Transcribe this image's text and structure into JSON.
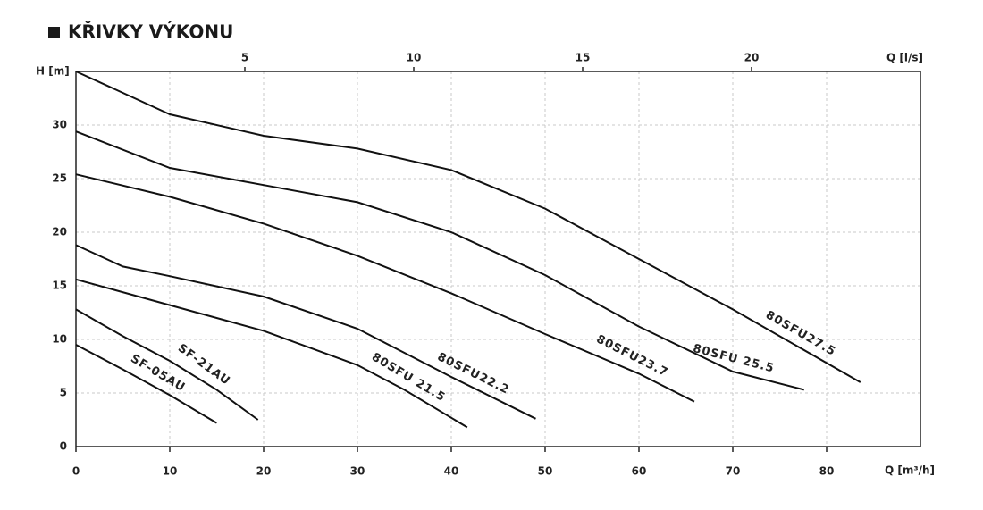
{
  "chart_data": {
    "type": "line",
    "title": "KŘIVKY VÝKONU",
    "y_label": "H [m]",
    "x_label": "Q [m³/h]",
    "x2_label": "Q [l/s]",
    "xlim": [
      0,
      90
    ],
    "xticks": [
      0,
      10,
      20,
      30,
      40,
      50,
      60,
      70,
      80
    ],
    "x2lim": [
      0,
      25
    ],
    "x2ticks": [
      5,
      10,
      15,
      20
    ],
    "ylim": [
      0,
      35
    ],
    "yticks": [
      0,
      5,
      10,
      15,
      20,
      25,
      30
    ],
    "grid": true,
    "series": [
      {
        "name": "SF-05AU",
        "color": "#111111",
        "x": [
          0,
          5,
          10,
          15
        ],
        "values": [
          9.5,
          7.2,
          4.8,
          2.2
        ]
      },
      {
        "name": "SF-21AU",
        "color": "#111111",
        "x": [
          0,
          5,
          10,
          15,
          19.4
        ],
        "values": [
          12.8,
          10.3,
          8,
          5.3,
          2.5
        ]
      },
      {
        "name": "80SFU 21.5",
        "color": "#111111",
        "x": [
          0,
          10,
          20,
          30,
          35,
          41.7
        ],
        "values": [
          15.6,
          13.2,
          10.8,
          7.6,
          5.3,
          1.8
        ]
      },
      {
        "name": "80SFU22.2",
        "color": "#111111",
        "x": [
          0,
          5,
          10,
          20,
          30,
          40,
          49
        ],
        "values": [
          18.8,
          16.8,
          15.9,
          14,
          11,
          6.5,
          2.6
        ]
      },
      {
        "name": "80SFU23.7",
        "color": "#111111",
        "x": [
          0,
          10,
          20,
          30,
          40,
          50,
          60,
          65.9
        ],
        "values": [
          25.4,
          23.3,
          20.8,
          17.8,
          14.3,
          10.5,
          6.8,
          4.2
        ]
      },
      {
        "name": "80SFU 25.5",
        "color": "#111111",
        "x": [
          0,
          10,
          20,
          30,
          40,
          50,
          60,
          70,
          77.6
        ],
        "values": [
          29.4,
          26,
          24.4,
          22.8,
          20,
          16,
          11.2,
          7,
          5.3
        ]
      },
      {
        "name": "80SFU27.5",
        "color": "#111111",
        "x": [
          0,
          10,
          20,
          30,
          40,
          50,
          60,
          70,
          83.6
        ],
        "values": [
          35,
          31,
          29,
          27.8,
          25.8,
          22.2,
          17.5,
          12.8,
          6
        ]
      }
    ]
  }
}
